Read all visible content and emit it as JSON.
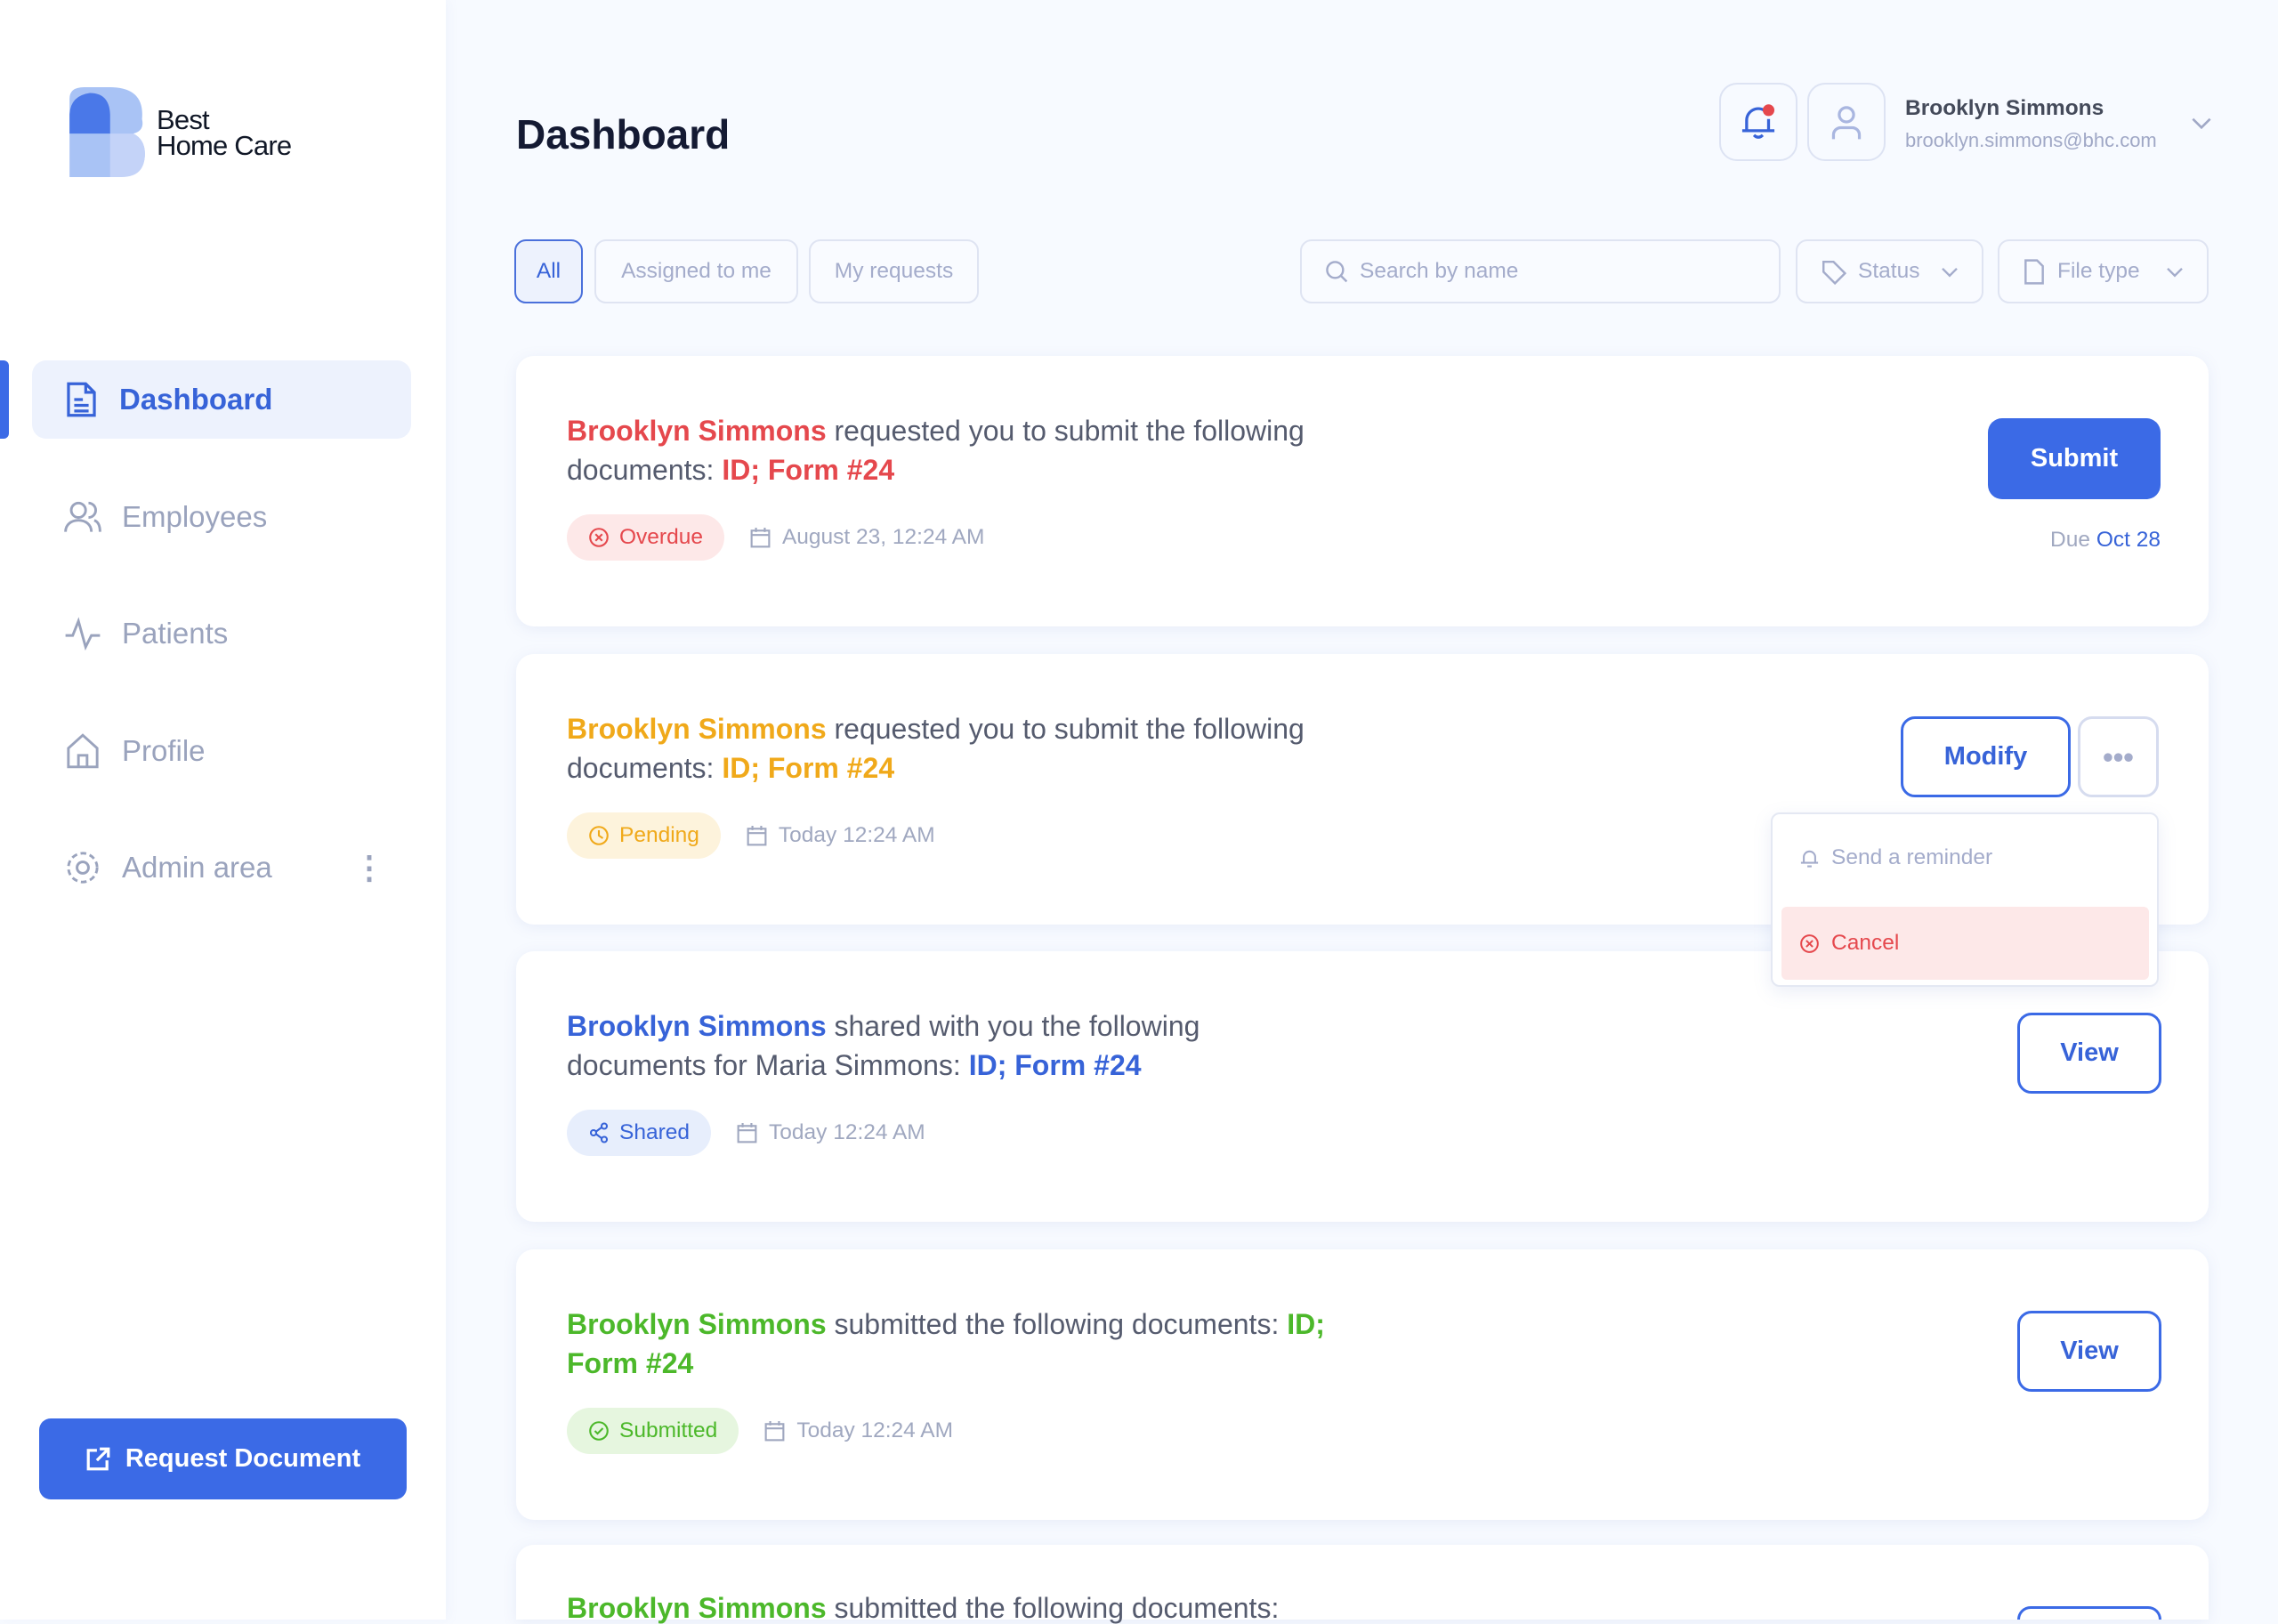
{
  "brand": {
    "line1": "Best",
    "line2": "Home Care"
  },
  "sidebar": {
    "items": [
      {
        "label": "Dashboard",
        "icon": "document-icon",
        "active": true
      },
      {
        "label": "Employees",
        "icon": "users-icon"
      },
      {
        "label": "Patients",
        "icon": "activity-icon"
      },
      {
        "label": "Profile",
        "icon": "home-icon"
      },
      {
        "label": "Admin area",
        "icon": "gear-icon"
      }
    ],
    "request_button": "Request Document"
  },
  "header": {
    "title": "Dashboard",
    "user_name": "Brooklyn Simmons",
    "user_email": "brooklyn.simmons@bhc.com"
  },
  "filters": {
    "tabs": [
      "All",
      "Assigned to me",
      "My requests"
    ],
    "search_placeholder": "Search by name",
    "status": "Status",
    "file_type": "File type"
  },
  "colors": {
    "accent": "#3b6ae6",
    "overdue": "#e5484d",
    "pending": "#f0a91a",
    "shared": "#3763d8",
    "submitted": "#4cb82a"
  },
  "cards": [
    {
      "name": "Brooklyn Simmons",
      "text": " requested you to submit the following documents: ",
      "docs": "ID; Form #24",
      "status": "Overdue",
      "date": "August 23, 12:24 AM",
      "action": "Submit",
      "due_label": "Due",
      "due_date": "Oct 28"
    },
    {
      "name": "Brooklyn Simmons",
      "text": " requested you to submit the following documents: ",
      "docs": "ID; Form #24",
      "status": "Pending",
      "date": "Today 12:24 AM",
      "action": "Modify"
    },
    {
      "name": "Brooklyn Simmons",
      "text": " shared with you the following documents for Maria Simmons: ",
      "docs": "ID; Form #24",
      "status": "Shared",
      "date": "Today 12:24 AM",
      "action": "View"
    },
    {
      "name": "Brooklyn Simmons",
      "text": " submitted the following documents: ",
      "docs": "ID; Form #24",
      "status": "Submitted",
      "date": "Today 12:24 AM",
      "action": "View"
    },
    {
      "name": "Brooklyn Simmons",
      "text": " submitted the following documents:"
    }
  ],
  "menu": {
    "reminder": "Send a reminder",
    "cancel": "Cancel"
  }
}
